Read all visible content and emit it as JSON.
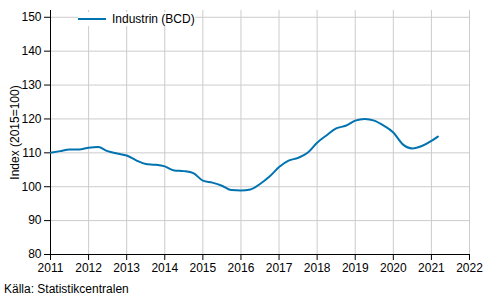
{
  "chart_data": {
    "type": "line",
    "y_label": "Index (2015=100)",
    "caption": "Källa: Statistikcentralen",
    "legend": "top-left",
    "grid": true,
    "x": [
      2011.0,
      2011.25,
      2011.5,
      2011.75,
      2012.0,
      2012.25,
      2012.5,
      2012.75,
      2013.0,
      2013.25,
      2013.5,
      2013.75,
      2014.0,
      2014.25,
      2014.5,
      2014.75,
      2015.0,
      2015.25,
      2015.5,
      2015.75,
      2016.0,
      2016.25,
      2016.5,
      2016.75,
      2017.0,
      2017.25,
      2017.5,
      2017.75,
      2018.0,
      2018.25,
      2018.5,
      2018.75,
      2019.0,
      2019.25,
      2019.5,
      2019.75,
      2020.0,
      2020.25,
      2020.5,
      2020.75,
      2021.0,
      2021.17
    ],
    "series": [
      {
        "name": "Industrin (BCD)",
        "color": "#0073b0",
        "values": [
          110,
          110.5,
          111,
          111,
          111.5,
          111.7,
          110.5,
          109.8,
          109.2,
          107.8,
          106.7,
          106.5,
          106,
          104.8,
          104.6,
          104,
          101.8,
          101.2,
          100.3,
          99,
          98.9,
          99.2,
          100.8,
          103,
          105.8,
          107.7,
          108.5,
          110,
          113,
          115.2,
          117.2,
          118,
          119.5,
          120,
          119.5,
          118,
          116,
          112.5,
          111.3,
          112,
          113.5,
          114.8
        ]
      }
    ],
    "xlim": [
      2011,
      2022
    ],
    "xticks": [
      2011,
      2012,
      2013,
      2014,
      2015,
      2016,
      2017,
      2018,
      2019,
      2020,
      2021,
      2022
    ],
    "ylim": [
      80,
      152
    ],
    "yticks": [
      80,
      90,
      100,
      110,
      120,
      130,
      140,
      150
    ]
  }
}
